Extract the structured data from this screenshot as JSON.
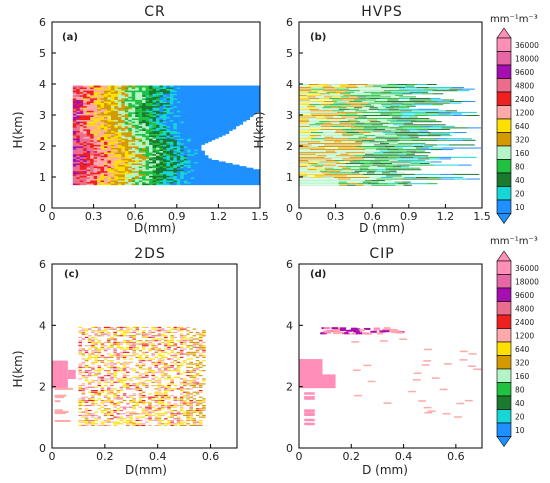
{
  "colorbar": {
    "unit": "mm⁻¹m⁻³",
    "levels": [
      "36000",
      "18000",
      "9600",
      "4800",
      "2400",
      "1200",
      "640",
      "320",
      "160",
      "80",
      "40",
      "20",
      "10"
    ],
    "colors": [
      "#ff8fb8",
      "#e766a6",
      "#a70eb1",
      "#ea6d8e",
      "#f02020",
      "#ffa9a9",
      "#ffe000",
      "#d49a00",
      "#b4f5c8",
      "#20c040",
      "#1a7a30",
      "#16d6d6",
      "#1e90ff"
    ]
  },
  "chart_data": [
    {
      "type": "heatmap",
      "panel": "a",
      "title": "CR",
      "ylabel": "H(km)",
      "xlabel": "D(mm)",
      "xlim": [
        0,
        1.5
      ],
      "ylim": [
        0,
        6
      ],
      "xticks": [
        "0",
        "0.3",
        "0.6",
        "0.9",
        "1.2",
        "1.5"
      ],
      "yticks": [
        "0",
        "1",
        "2",
        "3",
        "4",
        "5",
        "6"
      ],
      "x_extent": [
        0.15,
        1.5
      ],
      "h_extent": [
        0.75,
        3.95
      ],
      "profile": {
        "h": [
          0.75,
          1.2,
          1.6,
          2.0,
          2.4,
          2.8,
          3.2,
          3.6,
          3.95
        ],
        "dmax": [
          1.5,
          1.5,
          1.12,
          1.05,
          1.25,
          1.38,
          1.5,
          1.5,
          1.5
        ]
      }
    },
    {
      "type": "heatmap",
      "panel": "b",
      "title": "HVPS",
      "ylabel": "H(km)",
      "xlabel": "D (mm)",
      "xlim": [
        0,
        1.5
      ],
      "ylim": [
        0,
        6
      ],
      "xticks": [
        "0",
        "0.3",
        "0.6",
        "0.9",
        "1.2",
        "1.5"
      ],
      "yticks": [
        "0",
        "1",
        "2",
        "3",
        "4",
        "5",
        "6"
      ],
      "x_extent": [
        0.0,
        1.5
      ],
      "h_extent": [
        0.7,
        4.0
      ]
    },
    {
      "type": "heatmap",
      "panel": "c",
      "title": "2DS",
      "ylabel": "H(km)",
      "xlabel": "D(mm)",
      "xlim": [
        0,
        0.7
      ],
      "ylim": [
        0,
        6
      ],
      "xticks": [
        "0",
        "0.2",
        "0.4",
        "0.6"
      ],
      "yticks": [
        "0",
        "2",
        "4",
        "6"
      ],
      "x_extent": [
        0.0,
        0.58
      ],
      "h_extent": [
        0.6,
        4.0
      ]
    },
    {
      "type": "heatmap",
      "panel": "d",
      "title": "CIP",
      "ylabel": "",
      "xlabel": "D  (mm)",
      "xlim": [
        0,
        0.7
      ],
      "ylim": [
        0,
        6
      ],
      "xticks": [
        "0",
        "0.2",
        "0.4",
        "0.6"
      ],
      "yticks": [
        "0",
        "2",
        "4",
        "6"
      ],
      "x_extent": [
        0.0,
        0.68
      ],
      "h_extent": [
        0.6,
        4.0
      ]
    }
  ]
}
